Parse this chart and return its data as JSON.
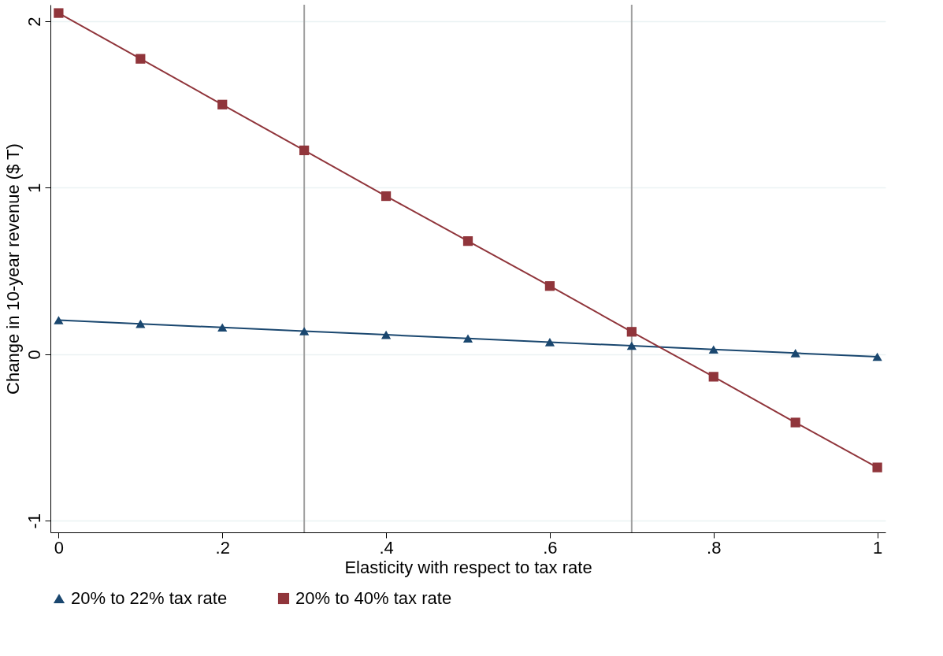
{
  "chart_data": {
    "type": "line",
    "xlabel": "Elasticity with respect to tax rate",
    "ylabel": "Change in 10-year revenue ($ T)",
    "x": [
      0,
      0.1,
      0.2,
      0.3,
      0.4,
      0.5,
      0.6,
      0.7,
      0.8,
      0.9,
      1
    ],
    "series": [
      {
        "name": "20% to 22% tax rate",
        "color": "#1a476f",
        "marker": "triangle",
        "values": [
          0.205,
          0.183,
          0.161,
          0.139,
          0.117,
          0.095,
          0.073,
          0.051,
          0.029,
          0.007,
          -0.015
        ]
      },
      {
        "name": "20% to 40% tax rate",
        "color": "#90353b",
        "marker": "square",
        "values": [
          2.05,
          1.775,
          1.5,
          1.225,
          0.95,
          0.68,
          0.41,
          0.135,
          -0.135,
          -0.41,
          -0.68
        ]
      }
    ],
    "xlim": [
      -0.01,
      1.01
    ],
    "ylim": [
      -1.07,
      2.1
    ],
    "xticks": [
      0,
      {
        "value": 0.2,
        "label": ".2"
      },
      {
        "value": 0.4,
        "label": ".4"
      },
      {
        "value": 0.6,
        "label": ".6"
      },
      {
        "value": 0.8,
        "label": ".8"
      },
      1
    ],
    "yticks": [
      -1,
      0,
      1,
      2
    ],
    "ref_lines": [
      {
        "axis": "x",
        "value": 0.3,
        "color": "#a0a0a0"
      },
      {
        "axis": "x",
        "value": 0.7,
        "color": "#a0a0a0"
      }
    ],
    "grid": "y",
    "legend": "bottom",
    "line_style": "solid"
  }
}
